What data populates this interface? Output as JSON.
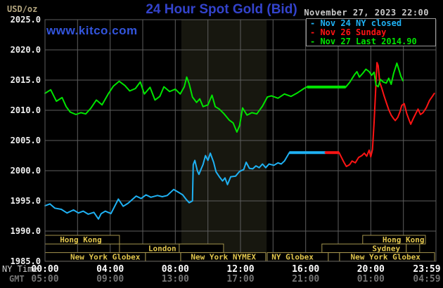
{
  "header": {
    "unit": "USD/oz",
    "title": "24 Hour Spot Gold (Bid)",
    "watermark": "www.kitco.com",
    "datetime": "November 27, 2023 22:00"
  },
  "legend": {
    "items": [
      {
        "label": "Nov 24 NY closed",
        "color": "#1fb1f3"
      },
      {
        "label": "Nov 26 Sunday",
        "color": "#ff1414"
      },
      {
        "label": "Nov 27 Last 2014.90",
        "color": "#00e400"
      }
    ]
  },
  "axes": {
    "ny_label": "NY Time",
    "gmt_label": "GMT",
    "y_ticks": [
      2025.0,
      2020.0,
      2015.0,
      2010.0,
      2005.0,
      2000.0,
      1995.0,
      1990.0,
      1985.0
    ],
    "x_ticks": [
      {
        "h": 0,
        "ny": "00:00",
        "gmt": "05:00"
      },
      {
        "h": 4,
        "ny": "04:00",
        "gmt": "09:00"
      },
      {
        "h": 8,
        "ny": "08:00",
        "gmt": "13:00"
      },
      {
        "h": 12,
        "ny": "12:00",
        "gmt": "17:00"
      },
      {
        "h": 16,
        "ny": "16:00",
        "gmt": "21:00"
      },
      {
        "h": 20,
        "ny": "20:00",
        "gmt": "01:00"
      },
      {
        "h": 23.983,
        "ny": "23:59",
        "gmt": "04:59"
      }
    ]
  },
  "sessions": {
    "border_color": "#a3934d",
    "text_color": "#e2c64d",
    "rows": [
      [
        {
          "label": "Hong Kong",
          "from": 0,
          "to": 4.57,
          "label_h": 2.2
        },
        {
          "label": "Hong Kong",
          "from": 19.5,
          "to": 23.35,
          "label_h": 22.0
        }
      ],
      [
        {
          "label": "London",
          "from": 4.57,
          "to": 8.24,
          "label_h": 7.2
        },
        {
          "label": "",
          "from": 8.24,
          "to": 10.96,
          "label_h": 0
        },
        {
          "label": "Sydney",
          "from": 17.0,
          "to": 22.18,
          "label_h": 20.95
        },
        {
          "label": "",
          "from": 22.18,
          "to": 23.0,
          "label_h": 0
        }
      ],
      [
        {
          "label": "New York Globex",
          "from": 0,
          "to": 6.17,
          "label_h": 3.7
        },
        {
          "label": "",
          "from": 6.17,
          "to": 8.33,
          "label_h": 0
        },
        {
          "label": "New York NYMEX",
          "from": 8.33,
          "to": 13.55,
          "label_h": 10.95
        },
        {
          "label": "NY Globex",
          "from": 13.64,
          "to": 17.39,
          "label_h": 15.2
        },
        {
          "label": "",
          "from": 17.39,
          "to": 18.08,
          "label_h": 0
        },
        {
          "label": "New York Globex",
          "from": 18.08,
          "to": 23.91,
          "label_h": 20.9
        }
      ]
    ]
  },
  "chart_data": {
    "type": "line",
    "title": "24 Hour Spot Gold (Bid)",
    "ylabel": "USD/oz",
    "xlabel": "NY Time (hours, 00:00-23:59)",
    "ylim": [
      1985,
      2025
    ],
    "xlim_hours": [
      0,
      24
    ],
    "y_grid_step": 5,
    "x_grid_step_hours": 2,
    "grid_color": "#5e5e5e",
    "plot_bg": "#000000",
    "highlight_band_hours": [
      8.37,
      13.6
    ],
    "highlight_band_color": "#17170f",
    "legend_position": "top-right",
    "last_price": 2014.9,
    "series": [
      {
        "name": "Nov 24 NY closed",
        "color": "#1fb1f3",
        "flat_segments": [
          [
            15.0,
            17.2,
            2003.0
          ]
        ],
        "points": [
          [
            0,
            1994.2
          ],
          [
            0.3,
            1994.5
          ],
          [
            0.6,
            1993.8
          ],
          [
            1.0,
            1993.6
          ],
          [
            1.35,
            1993.0
          ],
          [
            1.75,
            1993.5
          ],
          [
            2.05,
            1993.0
          ],
          [
            2.35,
            1993.3
          ],
          [
            2.65,
            1992.8
          ],
          [
            3.0,
            1993.1
          ],
          [
            3.28,
            1992.0
          ],
          [
            3.45,
            1992.9
          ],
          [
            3.7,
            1993.3
          ],
          [
            4.05,
            1992.9
          ],
          [
            4.5,
            1995.3
          ],
          [
            4.8,
            1994.1
          ],
          [
            5.1,
            1994.6
          ],
          [
            5.6,
            1995.8
          ],
          [
            5.9,
            1995.4
          ],
          [
            6.2,
            1996.0
          ],
          [
            6.5,
            1995.6
          ],
          [
            6.9,
            1995.9
          ],
          [
            7.2,
            1995.7
          ],
          [
            7.5,
            1995.9
          ],
          [
            7.9,
            1996.9
          ],
          [
            8.15,
            1996.5
          ],
          [
            8.45,
            1996.0
          ],
          [
            8.65,
            1995.3
          ],
          [
            8.85,
            1994.7
          ],
          [
            9.05,
            1995.0
          ],
          [
            9.1,
            2001.0
          ],
          [
            9.2,
            2001.7
          ],
          [
            9.35,
            2000.0
          ],
          [
            9.45,
            1999.4
          ],
          [
            9.6,
            2000.4
          ],
          [
            9.7,
            2001.0
          ],
          [
            9.85,
            2002.5
          ],
          [
            10.0,
            2001.7
          ],
          [
            10.15,
            2002.9
          ],
          [
            10.35,
            2001.4
          ],
          [
            10.5,
            1999.8
          ],
          [
            10.7,
            1999.0
          ],
          [
            10.9,
            1998.3
          ],
          [
            11.05,
            1998.8
          ],
          [
            11.2,
            1997.7
          ],
          [
            11.4,
            1999.0
          ],
          [
            11.7,
            1999.1
          ],
          [
            11.95,
            1999.9
          ],
          [
            12.2,
            2000.2
          ],
          [
            12.35,
            2001.4
          ],
          [
            12.55,
            2000.4
          ],
          [
            12.75,
            2000.3
          ],
          [
            12.95,
            2000.8
          ],
          [
            13.15,
            2000.5
          ],
          [
            13.35,
            2001.1
          ],
          [
            13.55,
            2000.5
          ],
          [
            13.75,
            2001.1
          ],
          [
            14.05,
            2000.9
          ],
          [
            14.3,
            2001.3
          ],
          [
            14.5,
            2001.1
          ],
          [
            14.7,
            2001.6
          ],
          [
            14.85,
            2002.3
          ],
          [
            15.0,
            2003.0
          ],
          [
            17.2,
            2003.0
          ]
        ]
      },
      {
        "name": "Nov 26 Sunday",
        "color": "#ff1414",
        "flat_segments": [
          [
            17.2,
            18.05,
            2003.0
          ]
        ],
        "points": [
          [
            17.2,
            2003.0
          ],
          [
            18.05,
            2003.0
          ],
          [
            18.2,
            2002.2
          ],
          [
            18.35,
            2001.4
          ],
          [
            18.5,
            2000.7
          ],
          [
            18.7,
            2001.0
          ],
          [
            18.85,
            2001.6
          ],
          [
            19.05,
            2001.3
          ],
          [
            19.25,
            2002.2
          ],
          [
            19.45,
            2002.5
          ],
          [
            19.6,
            2002.9
          ],
          [
            19.75,
            2002.4
          ],
          [
            19.9,
            2003.4
          ],
          [
            20.0,
            2002.3
          ],
          [
            20.1,
            2003.5
          ],
          [
            20.2,
            2008.0
          ],
          [
            20.3,
            2013.5
          ],
          [
            20.38,
            2017.9
          ],
          [
            20.45,
            2017.4
          ],
          [
            20.55,
            2014.6
          ],
          [
            20.68,
            2013.6
          ],
          [
            20.8,
            2012.5
          ],
          [
            20.95,
            2011.3
          ],
          [
            21.1,
            2010.1
          ],
          [
            21.25,
            2009.2
          ],
          [
            21.4,
            2008.6
          ],
          [
            21.5,
            2008.3
          ],
          [
            21.65,
            2008.8
          ],
          [
            21.78,
            2009.7
          ],
          [
            21.9,
            2010.8
          ],
          [
            22.05,
            2011.1
          ],
          [
            22.2,
            2009.5
          ],
          [
            22.35,
            2008.4
          ],
          [
            22.45,
            2007.7
          ],
          [
            22.6,
            2008.6
          ],
          [
            22.75,
            2009.4
          ],
          [
            22.9,
            2010.2
          ],
          [
            23.05,
            2009.3
          ],
          [
            23.2,
            2009.6
          ],
          [
            23.4,
            2010.4
          ],
          [
            23.6,
            2011.6
          ],
          [
            23.8,
            2012.4
          ],
          [
            23.9,
            2012.8
          ]
        ]
      },
      {
        "name": "Nov 27 Last 2014.90",
        "color": "#00e400",
        "flat_segments": [
          [
            16.1,
            18.45,
            2013.85
          ]
        ],
        "points": [
          [
            0,
            2012.8
          ],
          [
            0.35,
            2013.4
          ],
          [
            0.7,
            2011.5
          ],
          [
            1.05,
            2012.1
          ],
          [
            1.3,
            2010.6
          ],
          [
            1.55,
            2009.7
          ],
          [
            1.9,
            2009.3
          ],
          [
            2.2,
            2009.6
          ],
          [
            2.5,
            2009.4
          ],
          [
            2.8,
            2010.3
          ],
          [
            3.15,
            2011.7
          ],
          [
            3.5,
            2010.9
          ],
          [
            3.9,
            2012.8
          ],
          [
            4.2,
            2014.0
          ],
          [
            4.55,
            2014.8
          ],
          [
            4.9,
            2014.1
          ],
          [
            5.2,
            2013.2
          ],
          [
            5.55,
            2013.6
          ],
          [
            5.85,
            2014.7
          ],
          [
            6.1,
            2012.7
          ],
          [
            6.45,
            2013.8
          ],
          [
            6.75,
            2011.7
          ],
          [
            7.05,
            2012.3
          ],
          [
            7.3,
            2013.9
          ],
          [
            7.65,
            2013.1
          ],
          [
            8.0,
            2013.5
          ],
          [
            8.3,
            2012.7
          ],
          [
            8.55,
            2013.9
          ],
          [
            8.7,
            2015.5
          ],
          [
            8.85,
            2014.4
          ],
          [
            9.05,
            2012.2
          ],
          [
            9.3,
            2011.3
          ],
          [
            9.5,
            2011.9
          ],
          [
            9.7,
            2010.6
          ],
          [
            10.0,
            2010.9
          ],
          [
            10.25,
            2012.5
          ],
          [
            10.45,
            2010.6
          ],
          [
            10.7,
            2010.2
          ],
          [
            11.0,
            2009.4
          ],
          [
            11.3,
            2008.4
          ],
          [
            11.55,
            2007.9
          ],
          [
            11.78,
            2006.4
          ],
          [
            11.95,
            2007.5
          ],
          [
            12.13,
            2010.4
          ],
          [
            12.4,
            2009.2
          ],
          [
            12.7,
            2009.6
          ],
          [
            13.0,
            2009.4
          ],
          [
            13.35,
            2010.7
          ],
          [
            13.65,
            2012.2
          ],
          [
            13.9,
            2012.4
          ],
          [
            14.3,
            2012.0
          ],
          [
            14.7,
            2012.7
          ],
          [
            15.1,
            2012.3
          ],
          [
            15.5,
            2012.9
          ],
          [
            15.9,
            2013.6
          ],
          [
            16.1,
            2013.9
          ],
          [
            16.5,
            2013.8
          ],
          [
            17.0,
            2013.9
          ],
          [
            17.5,
            2013.8
          ],
          [
            18.0,
            2013.9
          ],
          [
            18.45,
            2013.8
          ],
          [
            18.7,
            2014.6
          ],
          [
            19.0,
            2015.9
          ],
          [
            19.15,
            2016.4
          ],
          [
            19.3,
            2015.5
          ],
          [
            19.5,
            2016.1
          ],
          [
            19.7,
            2016.8
          ],
          [
            19.9,
            2016.4
          ],
          [
            20.05,
            2015.8
          ],
          [
            20.2,
            2016.3
          ],
          [
            20.32,
            2014.2
          ],
          [
            20.45,
            2013.9
          ],
          [
            20.6,
            2015.1
          ],
          [
            20.75,
            2014.7
          ],
          [
            20.95,
            2014.5
          ],
          [
            21.1,
            2015.3
          ],
          [
            21.25,
            2014.3
          ],
          [
            21.4,
            2016.1
          ],
          [
            21.6,
            2017.8
          ],
          [
            21.75,
            2016.5
          ],
          [
            21.85,
            2015.6
          ],
          [
            21.97,
            2014.9
          ]
        ]
      }
    ]
  }
}
